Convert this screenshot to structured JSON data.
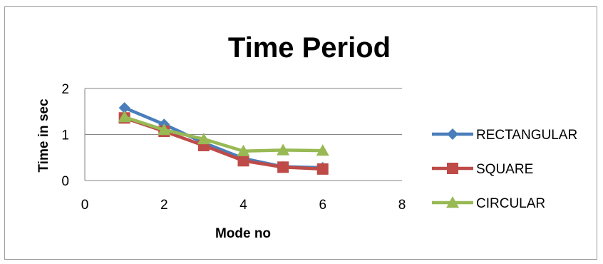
{
  "chart_data": {
    "type": "line",
    "title": "Time Period",
    "xlabel": "Mode no",
    "ylabel": "Time in sec",
    "xlim": [
      0,
      8
    ],
    "ylim": [
      0,
      2
    ],
    "xticks": [
      0,
      2,
      4,
      6,
      8
    ],
    "yticks": [
      0,
      1,
      2
    ],
    "grid": "horizontal",
    "legend_position": "right",
    "x": [
      1,
      2,
      3,
      4,
      5,
      6
    ],
    "series": [
      {
        "name": "RECTANGULAR",
        "color": "#4a7ebb",
        "marker": "diamond",
        "values": [
          1.58,
          1.22,
          0.82,
          0.48,
          0.3,
          0.28
        ]
      },
      {
        "name": "SQUARE",
        "color": "#be4b48",
        "marker": "square",
        "values": [
          1.36,
          1.07,
          0.76,
          0.43,
          0.29,
          0.25
        ]
      },
      {
        "name": "CIRCULAR",
        "color": "#98b954",
        "marker": "triangle",
        "values": [
          1.38,
          1.1,
          0.9,
          0.64,
          0.66,
          0.65
        ]
      }
    ]
  }
}
